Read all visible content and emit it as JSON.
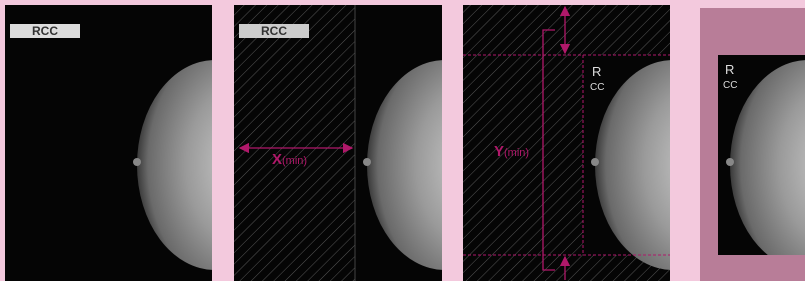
{
  "panels": [
    {
      "label": "RCC"
    },
    {
      "label": "RCC",
      "annotation": {
        "main": "X",
        "sub": "(min)"
      }
    },
    {
      "label": {
        "top": "R",
        "bottom": "CC"
      },
      "annotation": {
        "main": "Y",
        "sub": "(min)"
      }
    },
    {
      "label": {
        "top": "R",
        "bottom": "CC"
      }
    }
  ]
}
